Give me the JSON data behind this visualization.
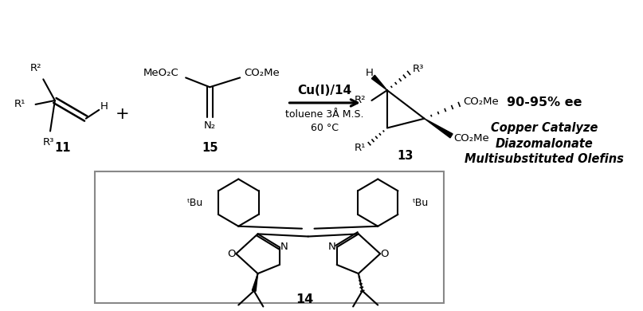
{
  "bg_color": "#ffffff",
  "figsize": [
    8.07,
    3.9
  ],
  "dpi": 100,
  "catalyst_text": "Cu(I)/14",
  "cond1": "toluene 3Å M.S.",
  "cond2": "60 °C",
  "ee_text": "90-95% ee",
  "desc1": "Copper Catalyze",
  "desc2": "Diazomalonate",
  "desc3": "Multisubstituted Olefins",
  "label11": "11",
  "label15": "15",
  "label13": "13",
  "label14": "14"
}
